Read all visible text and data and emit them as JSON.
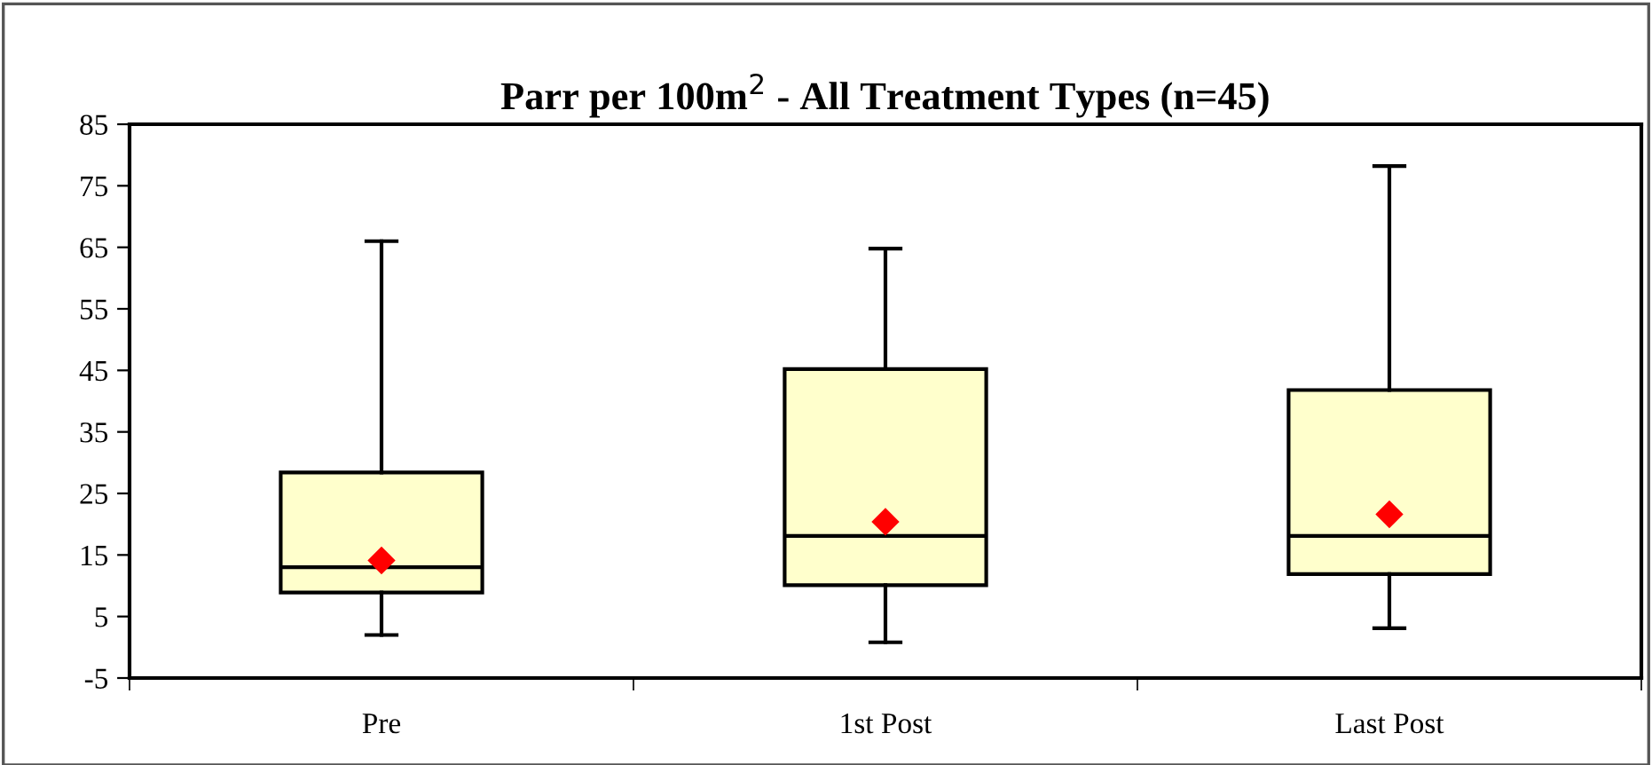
{
  "chart_data": {
    "type": "box",
    "title": "Parr per 100m$^{2}$ - All Treatment Types (n=45)",
    "categories": [
      "Pre",
      "1st Post",
      "Last Post"
    ],
    "boxes": [
      {
        "low": 2,
        "q1": 8.9,
        "median": 13,
        "q3": 28.4,
        "high": 66,
        "mean": 14.1
      },
      {
        "low": 0.8,
        "q1": 10.1,
        "median": 18.1,
        "q3": 45.2,
        "high": 64.8,
        "mean": 20.4
      },
      {
        "low": 3.1,
        "q1": 11.9,
        "median": 18.1,
        "q3": 41.8,
        "high": 78.2,
        "mean": 21.6
      }
    ],
    "color": "#ffffcc",
    "ylim": [
      -5,
      85
    ],
    "yticks": [
      -5,
      5,
      15,
      25,
      35,
      45,
      55,
      65,
      75,
      85
    ],
    "grid": false,
    "legend": false
  }
}
